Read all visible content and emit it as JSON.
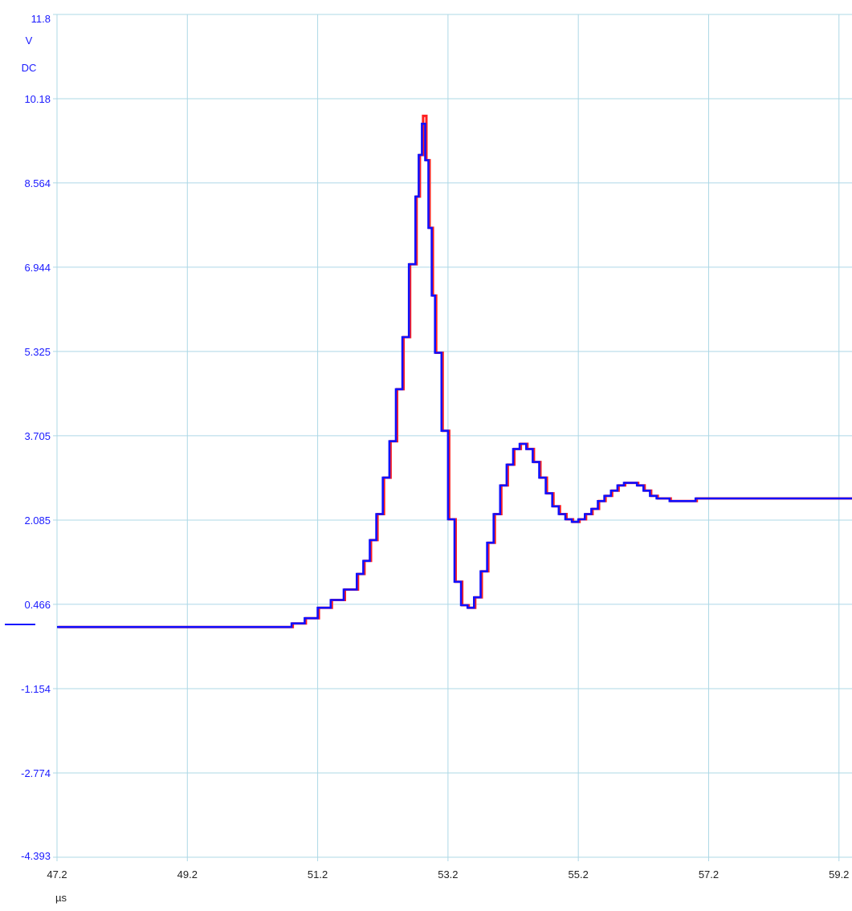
{
  "chart_data": {
    "type": "line",
    "y_unit": "V",
    "coupling": "DC",
    "x_unit": "µs",
    "ylim": [
      -4.393,
      11.8
    ],
    "xlim": [
      47.2,
      59.4
    ],
    "y_tick_labels": [
      "11.8",
      "10.18",
      "8.564",
      "6.944",
      "5.325",
      "3.705",
      "2.085",
      "0.466",
      "-1.154",
      "-2.774",
      "-4.393"
    ],
    "y_tick_values": [
      11.8,
      10.18,
      8.564,
      6.944,
      5.325,
      3.705,
      2.085,
      0.466,
      -1.154,
      -2.774,
      -4.393
    ],
    "x_tick_labels": [
      "47.2",
      "49.2",
      "51.2",
      "53.2",
      "55.2",
      "57.2",
      "59.2"
    ],
    "x_tick_values": [
      47.2,
      49.2,
      51.2,
      53.2,
      55.2,
      57.2,
      59.2
    ],
    "grid": true,
    "colors": {
      "grid": "#add8e6",
      "text": "#1a1aff",
      "series_a": "#ff2020",
      "series_b": "#1010ff"
    },
    "series": [
      {
        "color": "#ff2020",
        "x": [
          47.2,
          48.6,
          49.5,
          50.4,
          50.8,
          51.0,
          51.2,
          51.4,
          51.6,
          51.8,
          51.9,
          52.0,
          52.1,
          52.2,
          52.3,
          52.4,
          52.5,
          52.6,
          52.7,
          52.75,
          52.8,
          52.85,
          52.9,
          52.95,
          53.0,
          53.1,
          53.2,
          53.3,
          53.4,
          53.5,
          53.6,
          53.7,
          53.8,
          53.9,
          54.0,
          54.1,
          54.2,
          54.3,
          54.4,
          54.5,
          54.6,
          54.7,
          54.8,
          54.9,
          55.0,
          55.1,
          55.2,
          55.3,
          55.4,
          55.5,
          55.6,
          55.7,
          55.8,
          55.9,
          56.0,
          56.1,
          56.2,
          56.3,
          56.4,
          56.6,
          56.8,
          57.0,
          57.5,
          58.0,
          58.5,
          59.0,
          59.4
        ],
        "y": [
          0.03,
          0.03,
          0.03,
          0.03,
          0.1,
          0.2,
          0.4,
          0.55,
          0.75,
          1.05,
          1.3,
          1.7,
          2.2,
          2.9,
          3.6,
          4.6,
          5.6,
          7.0,
          8.3,
          9.1,
          9.85,
          9.0,
          7.7,
          6.4,
          5.3,
          3.8,
          2.1,
          0.9,
          0.45,
          0.4,
          0.6,
          1.1,
          1.65,
          2.2,
          2.75,
          3.15,
          3.45,
          3.55,
          3.45,
          3.2,
          2.9,
          2.6,
          2.35,
          2.2,
          2.1,
          2.05,
          2.1,
          2.2,
          2.3,
          2.45,
          2.55,
          2.65,
          2.75,
          2.8,
          2.8,
          2.75,
          2.65,
          2.55,
          2.5,
          2.45,
          2.45,
          2.5,
          2.5,
          2.5,
          2.5,
          2.5,
          2.5
        ]
      },
      {
        "color": "#1010ff",
        "x": [
          47.2,
          48.6,
          49.5,
          50.4,
          50.8,
          51.0,
          51.2,
          51.4,
          51.6,
          51.8,
          51.9,
          52.0,
          52.1,
          52.2,
          52.3,
          52.4,
          52.5,
          52.6,
          52.7,
          52.75,
          52.8,
          52.85,
          52.9,
          52.95,
          53.0,
          53.1,
          53.2,
          53.3,
          53.4,
          53.5,
          53.6,
          53.7,
          53.8,
          53.9,
          54.0,
          54.1,
          54.2,
          54.3,
          54.4,
          54.5,
          54.6,
          54.7,
          54.8,
          54.9,
          55.0,
          55.1,
          55.2,
          55.3,
          55.4,
          55.5,
          55.6,
          55.7,
          55.8,
          55.9,
          56.0,
          56.1,
          56.2,
          56.3,
          56.4,
          56.6,
          56.8,
          57.0,
          57.5,
          58.0,
          58.5,
          59.0,
          59.4
        ],
        "y": [
          0.03,
          0.03,
          0.03,
          0.03,
          0.1,
          0.2,
          0.4,
          0.55,
          0.75,
          1.05,
          1.3,
          1.7,
          2.2,
          2.9,
          3.6,
          4.6,
          5.6,
          7.0,
          8.3,
          9.1,
          9.7,
          9.0,
          7.7,
          6.4,
          5.3,
          3.8,
          2.1,
          0.9,
          0.45,
          0.4,
          0.6,
          1.1,
          1.65,
          2.2,
          2.75,
          3.15,
          3.45,
          3.55,
          3.45,
          3.2,
          2.9,
          2.6,
          2.35,
          2.2,
          2.1,
          2.05,
          2.1,
          2.2,
          2.3,
          2.45,
          2.55,
          2.65,
          2.75,
          2.8,
          2.8,
          2.75,
          2.65,
          2.55,
          2.5,
          2.45,
          2.45,
          2.5,
          2.5,
          2.5,
          2.5,
          2.5,
          2.5
        ]
      }
    ]
  }
}
